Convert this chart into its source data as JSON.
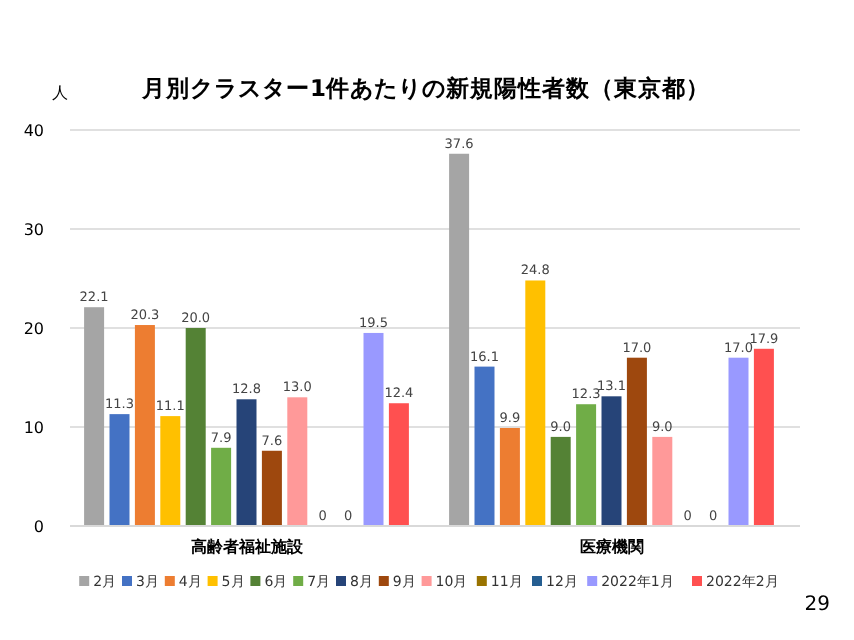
{
  "chart_data": {
    "type": "bar",
    "title": "月別クラスター1件あたりの新規陽性者数（東京都）",
    "ylabel": "人",
    "categories": [
      "高齢者福祉施設",
      "医療機関"
    ],
    "series": [
      {
        "name": "2月",
        "color": "#a5a5a5",
        "values": [
          22.1,
          37.6
        ],
        "value_labels": [
          "22.1",
          "37.6"
        ]
      },
      {
        "name": "3月",
        "color": "#4472c4",
        "values": [
          11.3,
          16.1
        ],
        "value_labels": [
          "11.3",
          "16.1"
        ]
      },
      {
        "name": "4月",
        "color": "#ed7d31",
        "values": [
          20.3,
          9.9
        ],
        "value_labels": [
          "20.3",
          "9.9"
        ]
      },
      {
        "name": "5月",
        "color": "#ffc000",
        "values": [
          11.1,
          24.8
        ],
        "value_labels": [
          "11.1",
          "24.8"
        ]
      },
      {
        "name": "6月",
        "color": "#548235",
        "values": [
          20.0,
          9.0
        ],
        "value_labels": [
          "20.0",
          "9.0"
        ]
      },
      {
        "name": "7月",
        "color": "#70ad47",
        "values": [
          7.9,
          12.3
        ],
        "value_labels": [
          "7.9",
          "12.3"
        ]
      },
      {
        "name": "8月",
        "color": "#264478",
        "values": [
          12.8,
          13.1
        ],
        "value_labels": [
          "12.8",
          "13.1"
        ]
      },
      {
        "name": "9月",
        "color": "#9e480e",
        "values": [
          7.6,
          17.0
        ],
        "value_labels": [
          "7.6",
          "17.0"
        ]
      },
      {
        "name": "10月",
        "color": "#ff9999",
        "values": [
          13.0,
          9.0
        ],
        "value_labels": [
          "13.0",
          "9.0"
        ]
      },
      {
        "name": "11月",
        "color": "#997300",
        "values": [
          0,
          0
        ],
        "value_labels": [
          "0",
          "0"
        ]
      },
      {
        "name": "12月",
        "color": "#255e91",
        "values": [
          0,
          0
        ],
        "value_labels": [
          "0",
          "0"
        ]
      },
      {
        "name": "2022年1月",
        "color": "#9999ff",
        "values": [
          19.5,
          17.0
        ],
        "value_labels": [
          "19.5",
          "17.0"
        ]
      },
      {
        "name": "2022年2月",
        "color": "#ff5050",
        "values": [
          12.4,
          17.9
        ],
        "value_labels": [
          "12.4",
          "17.9"
        ]
      }
    ],
    "ylim": [
      0,
      40
    ],
    "yticks": [
      0,
      10,
      20,
      30,
      40
    ],
    "grid": "y",
    "legend": "bottom",
    "annotations": [
      "29"
    ]
  }
}
